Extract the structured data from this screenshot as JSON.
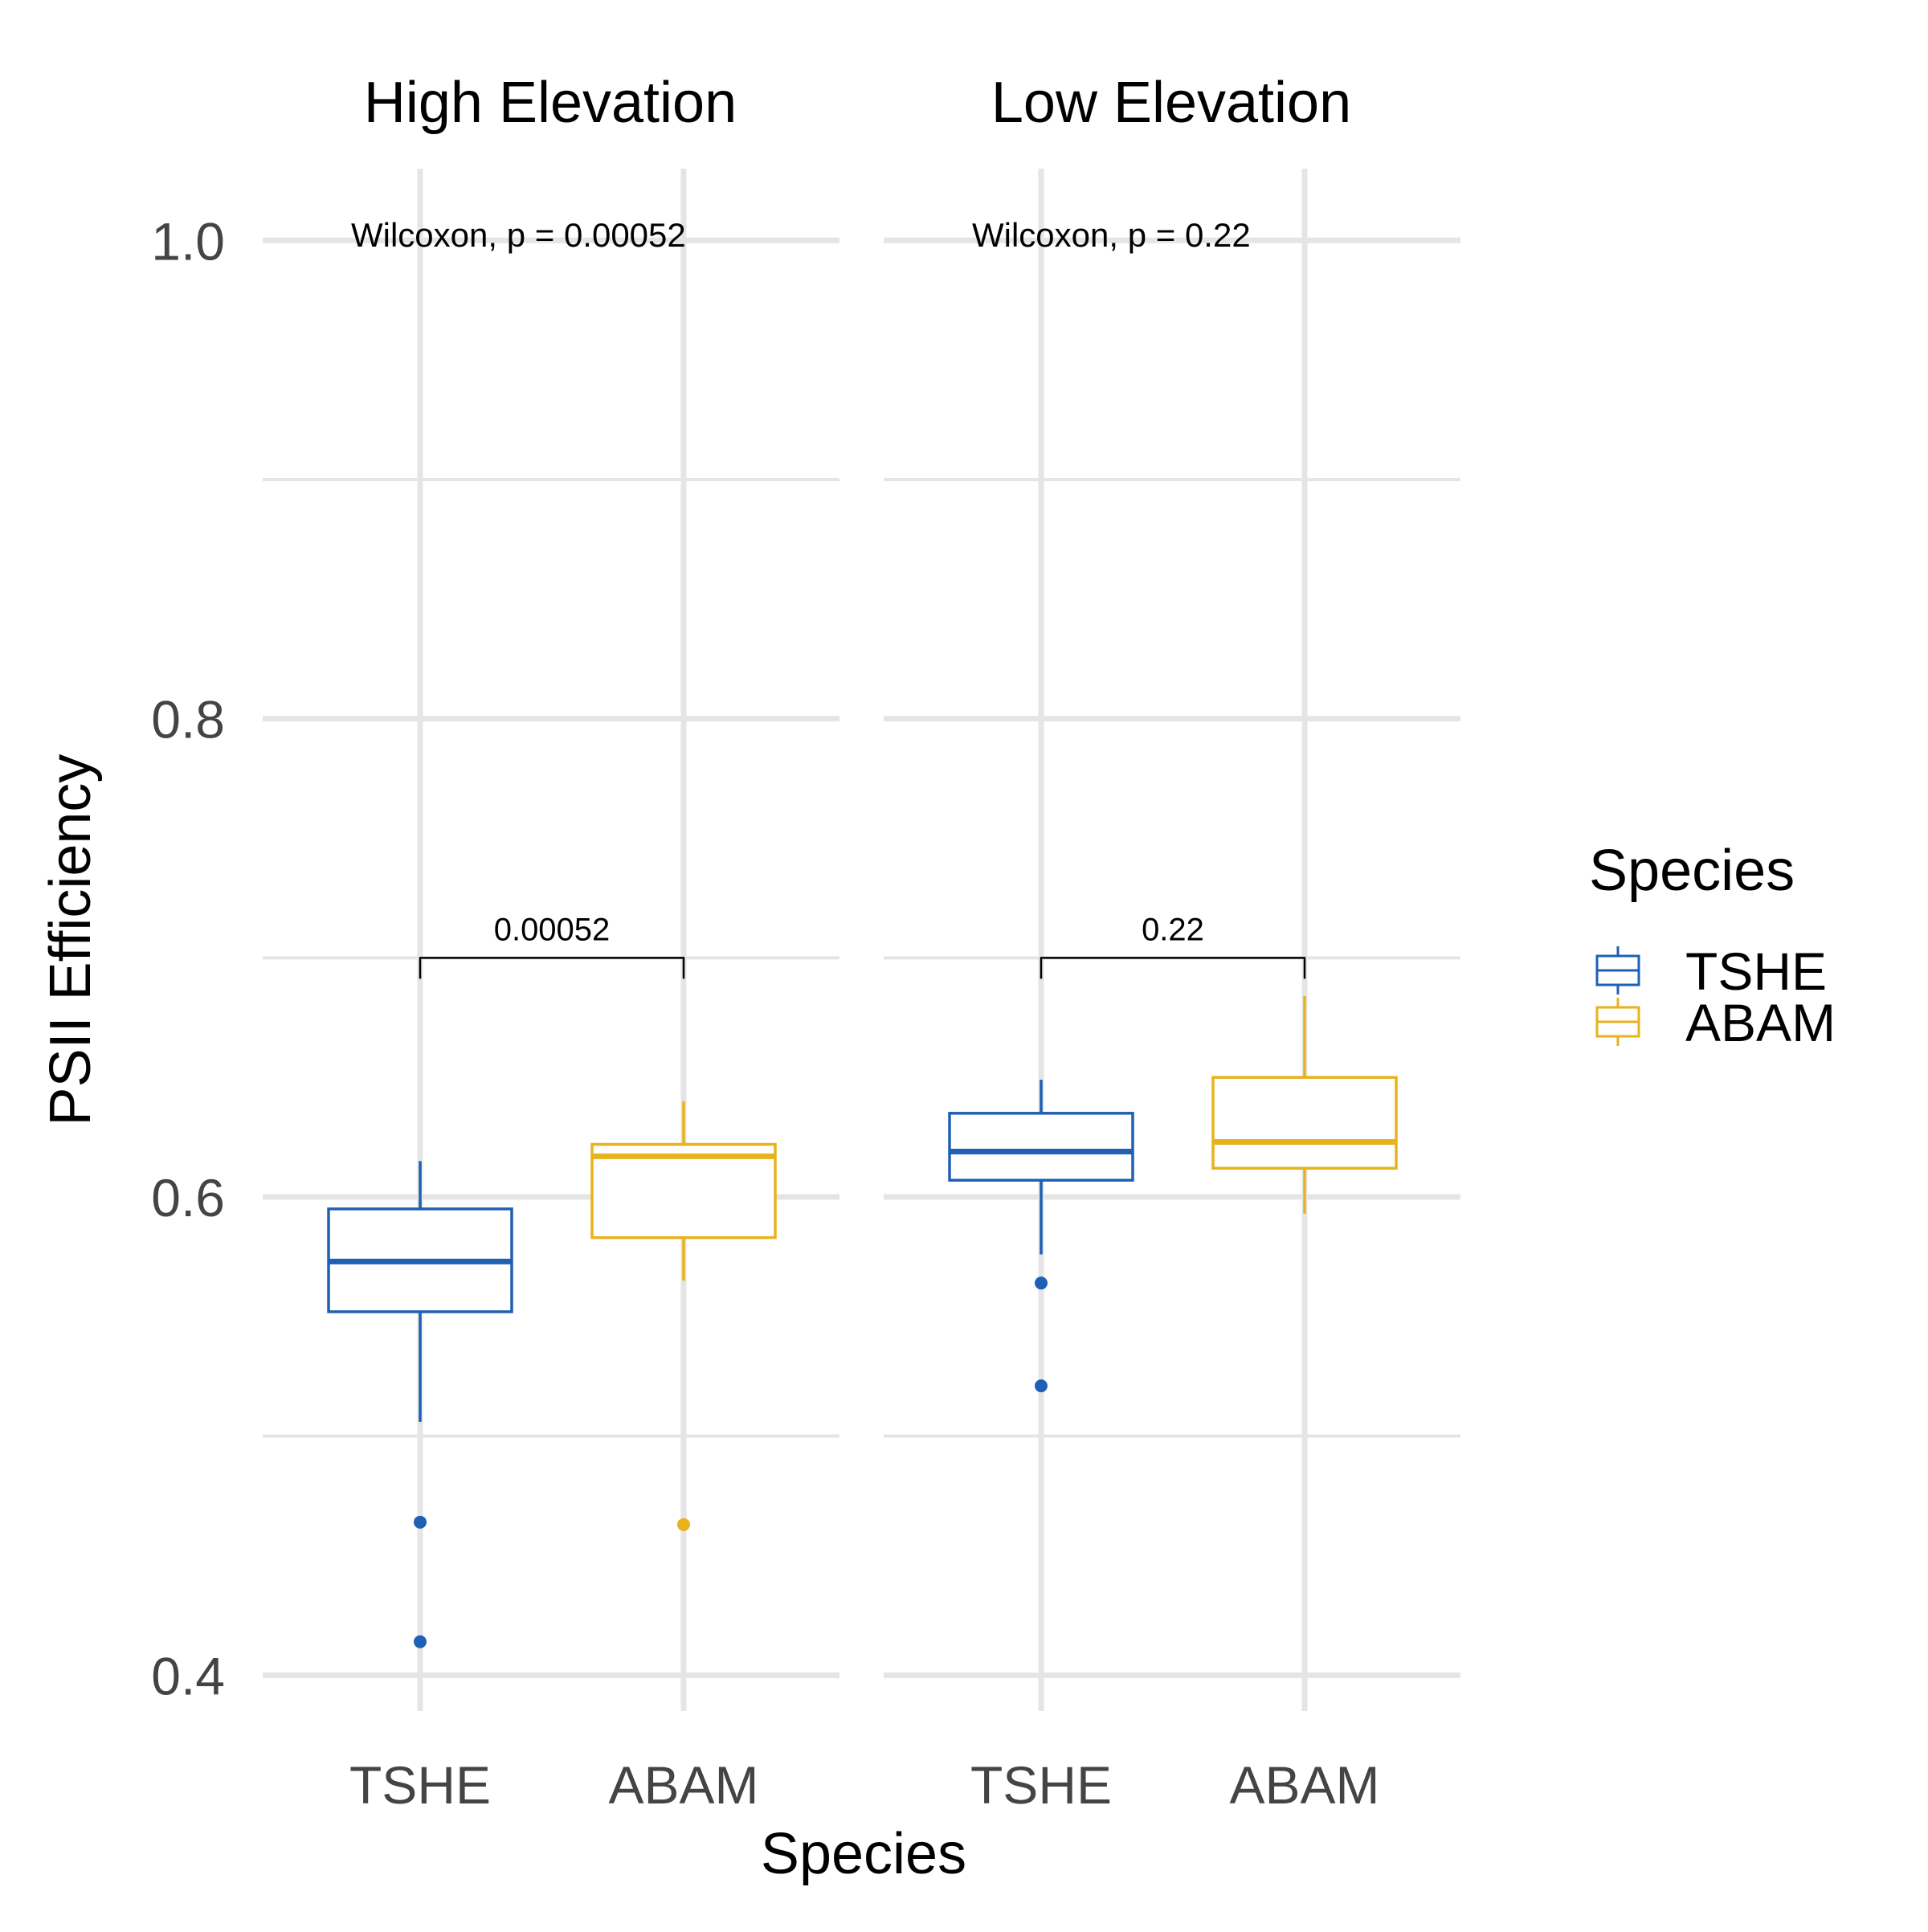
{
  "chart_data": {
    "type": "box",
    "ylabel": "PSII Efficiency",
    "xlabel": "Species",
    "ylim": [
      0.385,
      1.03
    ],
    "yticks": [
      0.4,
      0.6,
      0.8,
      1.0
    ],
    "ytick_labels": [
      "0.4",
      "0.6",
      "0.8",
      "1.0"
    ],
    "grid": true,
    "categories": [
      "TSHE",
      "ABAM"
    ],
    "colors": {
      "TSHE": "#1f5fb4",
      "ABAM": "#e8b21a",
      "grid": "#e5e5e5",
      "axis_text": "#444444",
      "bracket": "#000000"
    },
    "legend": {
      "title": "Species",
      "placement": "right",
      "entries": [
        "TSHE",
        "ABAM"
      ]
    },
    "panels": [
      {
        "title": "High Elevation",
        "annotation": "Wilcoxon, p = 0.00052",
        "bracket_label": "0.00052",
        "bracket_y": 0.7,
        "boxes": [
          {
            "category": "TSHE",
            "whisker_low": 0.506,
            "q1": 0.552,
            "median": 0.573,
            "q3": 0.595,
            "whisker_high": 0.615,
            "outliers": [
              0.464,
              0.414
            ]
          },
          {
            "category": "ABAM",
            "whisker_low": 0.565,
            "q1": 0.583,
            "median": 0.617,
            "q3": 0.622,
            "whisker_high": 0.64,
            "outliers": [
              0.463
            ]
          }
        ]
      },
      {
        "title": "Low Elevation",
        "annotation": "Wilcoxon, p = 0.22",
        "bracket_label": "0.22",
        "bracket_y": 0.7,
        "boxes": [
          {
            "category": "TSHE",
            "whisker_low": 0.576,
            "q1": 0.607,
            "median": 0.619,
            "q3": 0.635,
            "whisker_high": 0.649,
            "outliers": [
              0.564,
              0.521
            ]
          },
          {
            "category": "ABAM",
            "whisker_low": 0.593,
            "q1": 0.612,
            "median": 0.623,
            "q3": 0.65,
            "whisker_high": 0.684,
            "outliers": []
          }
        ]
      }
    ]
  }
}
